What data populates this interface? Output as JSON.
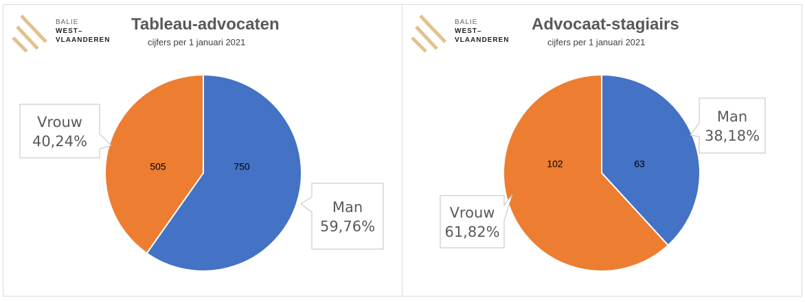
{
  "logo": {
    "line1": "BALIE",
    "line2": "WEST–",
    "line3": "VLAANDEREN",
    "stripe_color": "#e2c18f"
  },
  "chart_data": [
    {
      "type": "pie",
      "title": "Tableau-advocaten",
      "subtitle": "cijfers per 1 januari 2021",
      "categories": [
        "Man",
        "Vrouw"
      ],
      "values": [
        750,
        505
      ],
      "value_labels": [
        "750",
        "505"
      ],
      "percent_labels": [
        "59,76%",
        "40,24%"
      ],
      "colors": [
        "#4472c4",
        "#ed7d31"
      ]
    },
    {
      "type": "pie",
      "title": "Advocaat-stagiairs",
      "subtitle": "cijfers per 1 januari 2021",
      "categories": [
        "Man",
        "Vrouw"
      ],
      "values": [
        63,
        102
      ],
      "value_labels": [
        "63",
        "102"
      ],
      "percent_labels": [
        "38,18%",
        "61,82%"
      ],
      "colors": [
        "#4472c4",
        "#ed7d31"
      ]
    }
  ]
}
